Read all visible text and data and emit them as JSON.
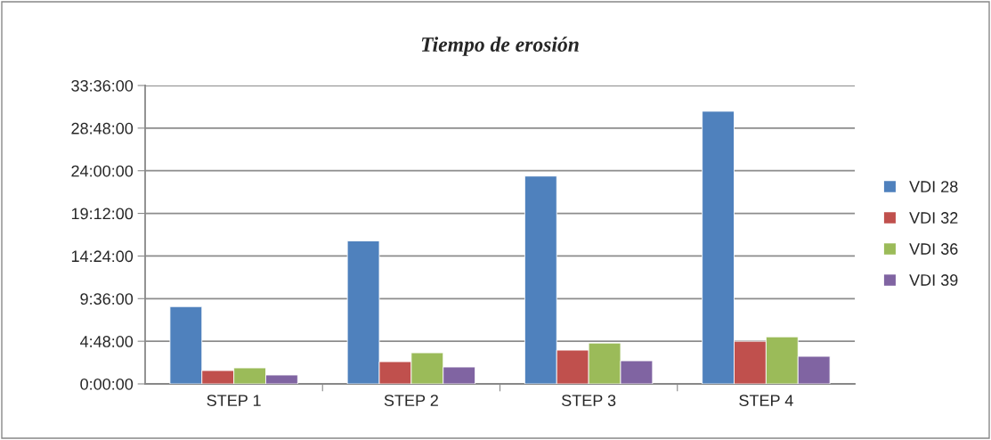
{
  "chart_data": {
    "type": "bar",
    "title": "Tiempo de erosión",
    "categories": [
      "STEP 1",
      "STEP 2",
      "STEP 3",
      "STEP 4"
    ],
    "series": [
      {
        "name": "VDI 28",
        "color": "#4f81bd",
        "values": [
          8.7,
          16.1,
          23.4,
          30.7
        ]
      },
      {
        "name": "VDI 32",
        "color": "#c0504d",
        "values": [
          1.5,
          2.5,
          3.8,
          4.8
        ]
      },
      {
        "name": "VDI 36",
        "color": "#9bbb59",
        "values": [
          1.8,
          3.5,
          4.6,
          5.3
        ]
      },
      {
        "name": "VDI 39",
        "color": "#8064a2",
        "values": [
          1.0,
          1.9,
          2.6,
          3.1
        ]
      }
    ],
    "ylim": [
      0,
      33.6
    ],
    "yticks": [
      {
        "value": 0,
        "label": "0:00:00"
      },
      {
        "value": 4.8,
        "label": "4:48:00"
      },
      {
        "value": 9.6,
        "label": "9:36:00"
      },
      {
        "value": 14.4,
        "label": "14:24:00"
      },
      {
        "value": 19.2,
        "label": "19:12:00"
      },
      {
        "value": 24,
        "label": "24:00:00"
      },
      {
        "value": 28.8,
        "label": "28:48:00"
      },
      {
        "value": 33.6,
        "label": "33:36:00"
      }
    ],
    "grid": "y",
    "legend": "right"
  }
}
